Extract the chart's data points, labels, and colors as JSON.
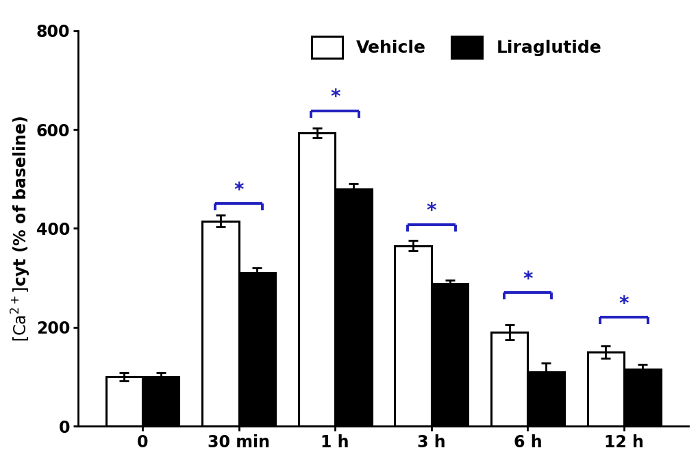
{
  "categories": [
    "0",
    "30 min",
    "1 h",
    "3 h",
    "6 h",
    "12 h"
  ],
  "vehicle_values": [
    100,
    415,
    593,
    365,
    190,
    150
  ],
  "liraglutide_values": [
    100,
    310,
    480,
    288,
    110,
    115
  ],
  "vehicle_errors": [
    8,
    12,
    10,
    10,
    15,
    12
  ],
  "liraglutide_errors": [
    8,
    10,
    10,
    8,
    18,
    10
  ],
  "bar_width": 0.38,
  "ylabel": "[Ca²⁺]cyt (% of baseline)",
  "ylim": [
    0,
    800
  ],
  "yticks": [
    0,
    200,
    400,
    600,
    800
  ],
  "vehicle_color": "#ffffff",
  "vehicle_edge": "#000000",
  "liraglutide_color": "#000000",
  "liraglutide_edge": "#000000",
  "legend_vehicle": "Vehicle",
  "legend_liraglutide": "Liraglutide",
  "sig_color": "#2020c0",
  "background_color": "#ffffff",
  "label_fontsize": 17,
  "tick_fontsize": 17,
  "legend_fontsize": 18,
  "bar_edge_width": 2.2,
  "error_cap_size": 5,
  "error_lw": 2.0,
  "bracket_configs": [
    {
      "gi": 1,
      "by": 450,
      "sy": 458,
      "tick_down": 14
    },
    {
      "gi": 2,
      "by": 638,
      "sy": 646,
      "tick_down": 14
    },
    {
      "gi": 3,
      "by": 408,
      "sy": 416,
      "tick_down": 14
    },
    {
      "gi": 4,
      "by": 270,
      "sy": 278,
      "tick_down": 14
    },
    {
      "gi": 5,
      "by": 220,
      "sy": 228,
      "tick_down": 14
    }
  ]
}
